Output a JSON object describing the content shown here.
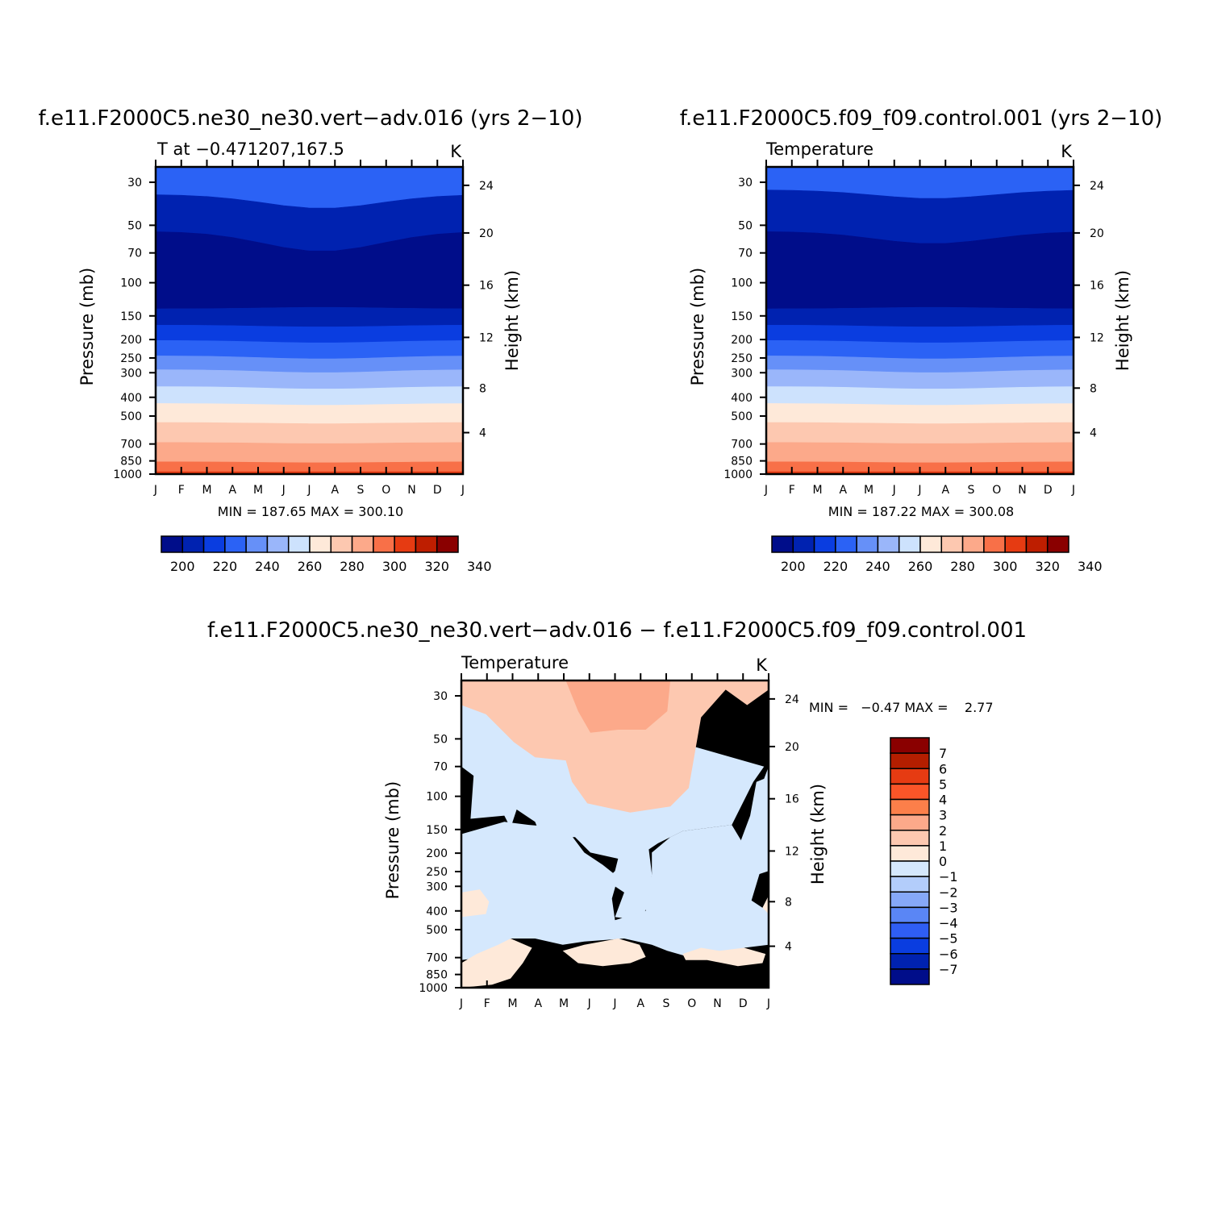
{
  "chart_data": [
    {
      "type": "heatmap",
      "id": "panel_a",
      "title": "f.e11.F2000C5.ne30_ne30.vert-adv.016 (yrs 2-10)",
      "subtitle_left": "T at -0.471207,167.5",
      "subtitle_right": "K",
      "ylabel": "Pressure (mb)",
      "ylabel_right": "Height (km)",
      "x_ticks": [
        "J",
        "F",
        "M",
        "A",
        "M",
        "J",
        "J",
        "A",
        "S",
        "O",
        "N",
        "D",
        "J"
      ],
      "y_ticks": [
        "30",
        "50",
        "70",
        "100",
        "150",
        "200",
        "250",
        "300",
        "400",
        "500",
        "700",
        "850",
        "1000"
      ],
      "y_ticks_right": [
        "24",
        "20",
        "16",
        "12",
        "8",
        "4"
      ],
      "min_max": "MIN = 187.65 MAX = 300.10",
      "colorbar_labels": [
        "200",
        "220",
        "240",
        "260",
        "280",
        "300",
        "320",
        "340"
      ]
    },
    {
      "type": "heatmap",
      "id": "panel_b",
      "title": "f.e11.F2000C5.f09_f09.control.001 (yrs 2-10)",
      "subtitle_left": "Temperature",
      "subtitle_right": "K",
      "ylabel": "Pressure (mb)",
      "ylabel_right": "Height (km)",
      "x_ticks": [
        "J",
        "F",
        "M",
        "A",
        "M",
        "J",
        "J",
        "A",
        "S",
        "O",
        "N",
        "D",
        "J"
      ],
      "y_ticks": [
        "30",
        "50",
        "70",
        "100",
        "150",
        "200",
        "250",
        "300",
        "400",
        "500",
        "700",
        "850",
        "1000"
      ],
      "y_ticks_right": [
        "24",
        "20",
        "16",
        "12",
        "8",
        "4"
      ],
      "min_max": "MIN = 187.22 MAX = 300.08",
      "colorbar_labels": [
        "200",
        "220",
        "240",
        "260",
        "280",
        "300",
        "320",
        "340"
      ]
    },
    {
      "type": "heatmap",
      "id": "panel_c",
      "title": "f.e11.F2000C5.ne30_ne30.vert-adv.016 - f.e11.F2000C5.f09_f09.control.001",
      "subtitle_left": "Temperature",
      "subtitle_right": "K",
      "ylabel": "Pressure (mb)",
      "ylabel_right": "Height (km)",
      "x_ticks": [
        "J",
        "F",
        "M",
        "A",
        "M",
        "J",
        "J",
        "A",
        "S",
        "O",
        "N",
        "D",
        "J"
      ],
      "y_ticks": [
        "30",
        "50",
        "70",
        "100",
        "150",
        "200",
        "250",
        "300",
        "400",
        "500",
        "700",
        "850",
        "1000"
      ],
      "y_ticks_right": [
        "24",
        "20",
        "16",
        "12",
        "8",
        "4"
      ],
      "min_max": "MIN =   -0.47 MAX =    2.77",
      "colorbar_labels": [
        "7",
        "6",
        "5",
        "4",
        "3",
        "2",
        "1",
        "0",
        "-1",
        "-2",
        "-3",
        "-4",
        "-5",
        "-6",
        "-7"
      ]
    }
  ],
  "palette_abs": [
    "#000d8a",
    "#0022b0",
    "#0a3de0",
    "#2b62f5",
    "#6690f8",
    "#9ab6fa",
    "#cde2fd",
    "#fee9d9",
    "#fdc8b0",
    "#fca98a",
    "#f87048",
    "#e63b12",
    "#be1e00",
    "#8a0000"
  ],
  "palette_diff": [
    "#8a0000",
    "#b41e00",
    "#e63b12",
    "#fa5528",
    "#fc7f4a",
    "#fca98a",
    "#fdc8b0",
    "#fee9d9",
    "#d5e8fd",
    "#b3cdfb",
    "#86a8f8",
    "#5a86f5",
    "#2f5ef4",
    "#0a3de0",
    "#0022b0",
    "#000d8a"
  ]
}
